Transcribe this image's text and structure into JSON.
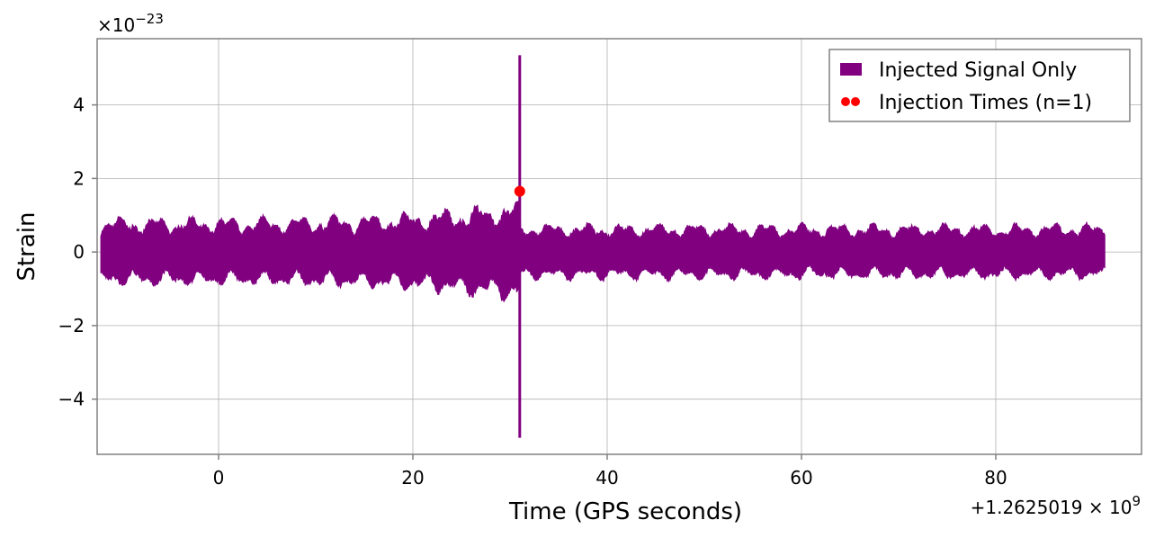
{
  "chart_data": {
    "type": "line",
    "xlabel": "Time (GPS seconds)",
    "ylabel": "Strain",
    "x_offset_label": "+1.2625019",
    "x_offset_exponent": "9",
    "y_multiplier_label": "10",
    "y_multiplier_exponent": "−23",
    "xlim": [
      -12.5,
      95
    ],
    "ylim": [
      -5.5,
      5.8
    ],
    "x_ticks": [
      0,
      20,
      40,
      60,
      80
    ],
    "x_tick_labels": [
      "0",
      "20",
      "40",
      "60",
      "80"
    ],
    "y_ticks": [
      -4,
      -2,
      0,
      2,
      4
    ],
    "y_tick_labels": [
      "−4",
      "−2",
      "0",
      "2",
      "4"
    ],
    "grid": true,
    "legend_position": "top-right",
    "legend": {
      "signal_label": "Injected Signal Only",
      "injection_label": "Injection Times (n=1)"
    },
    "series": [
      {
        "name": "Injected Signal Only",
        "color": "#800080",
        "x_range": [
          -12.1,
          91.2
        ],
        "envelope": {
          "pre_merger_amplitude": 0.8,
          "pre_merger_amplitude_near_merger": 1.2,
          "post_merger_amplitude": 0.65,
          "peak_max": 5.35,
          "peak_min": -5.05,
          "peak_time": 31.0
        }
      },
      {
        "name": "Injection Times (n=1)",
        "color": "#ff0000",
        "points": [
          {
            "x": 31.0,
            "y": 1.65
          }
        ]
      }
    ]
  }
}
